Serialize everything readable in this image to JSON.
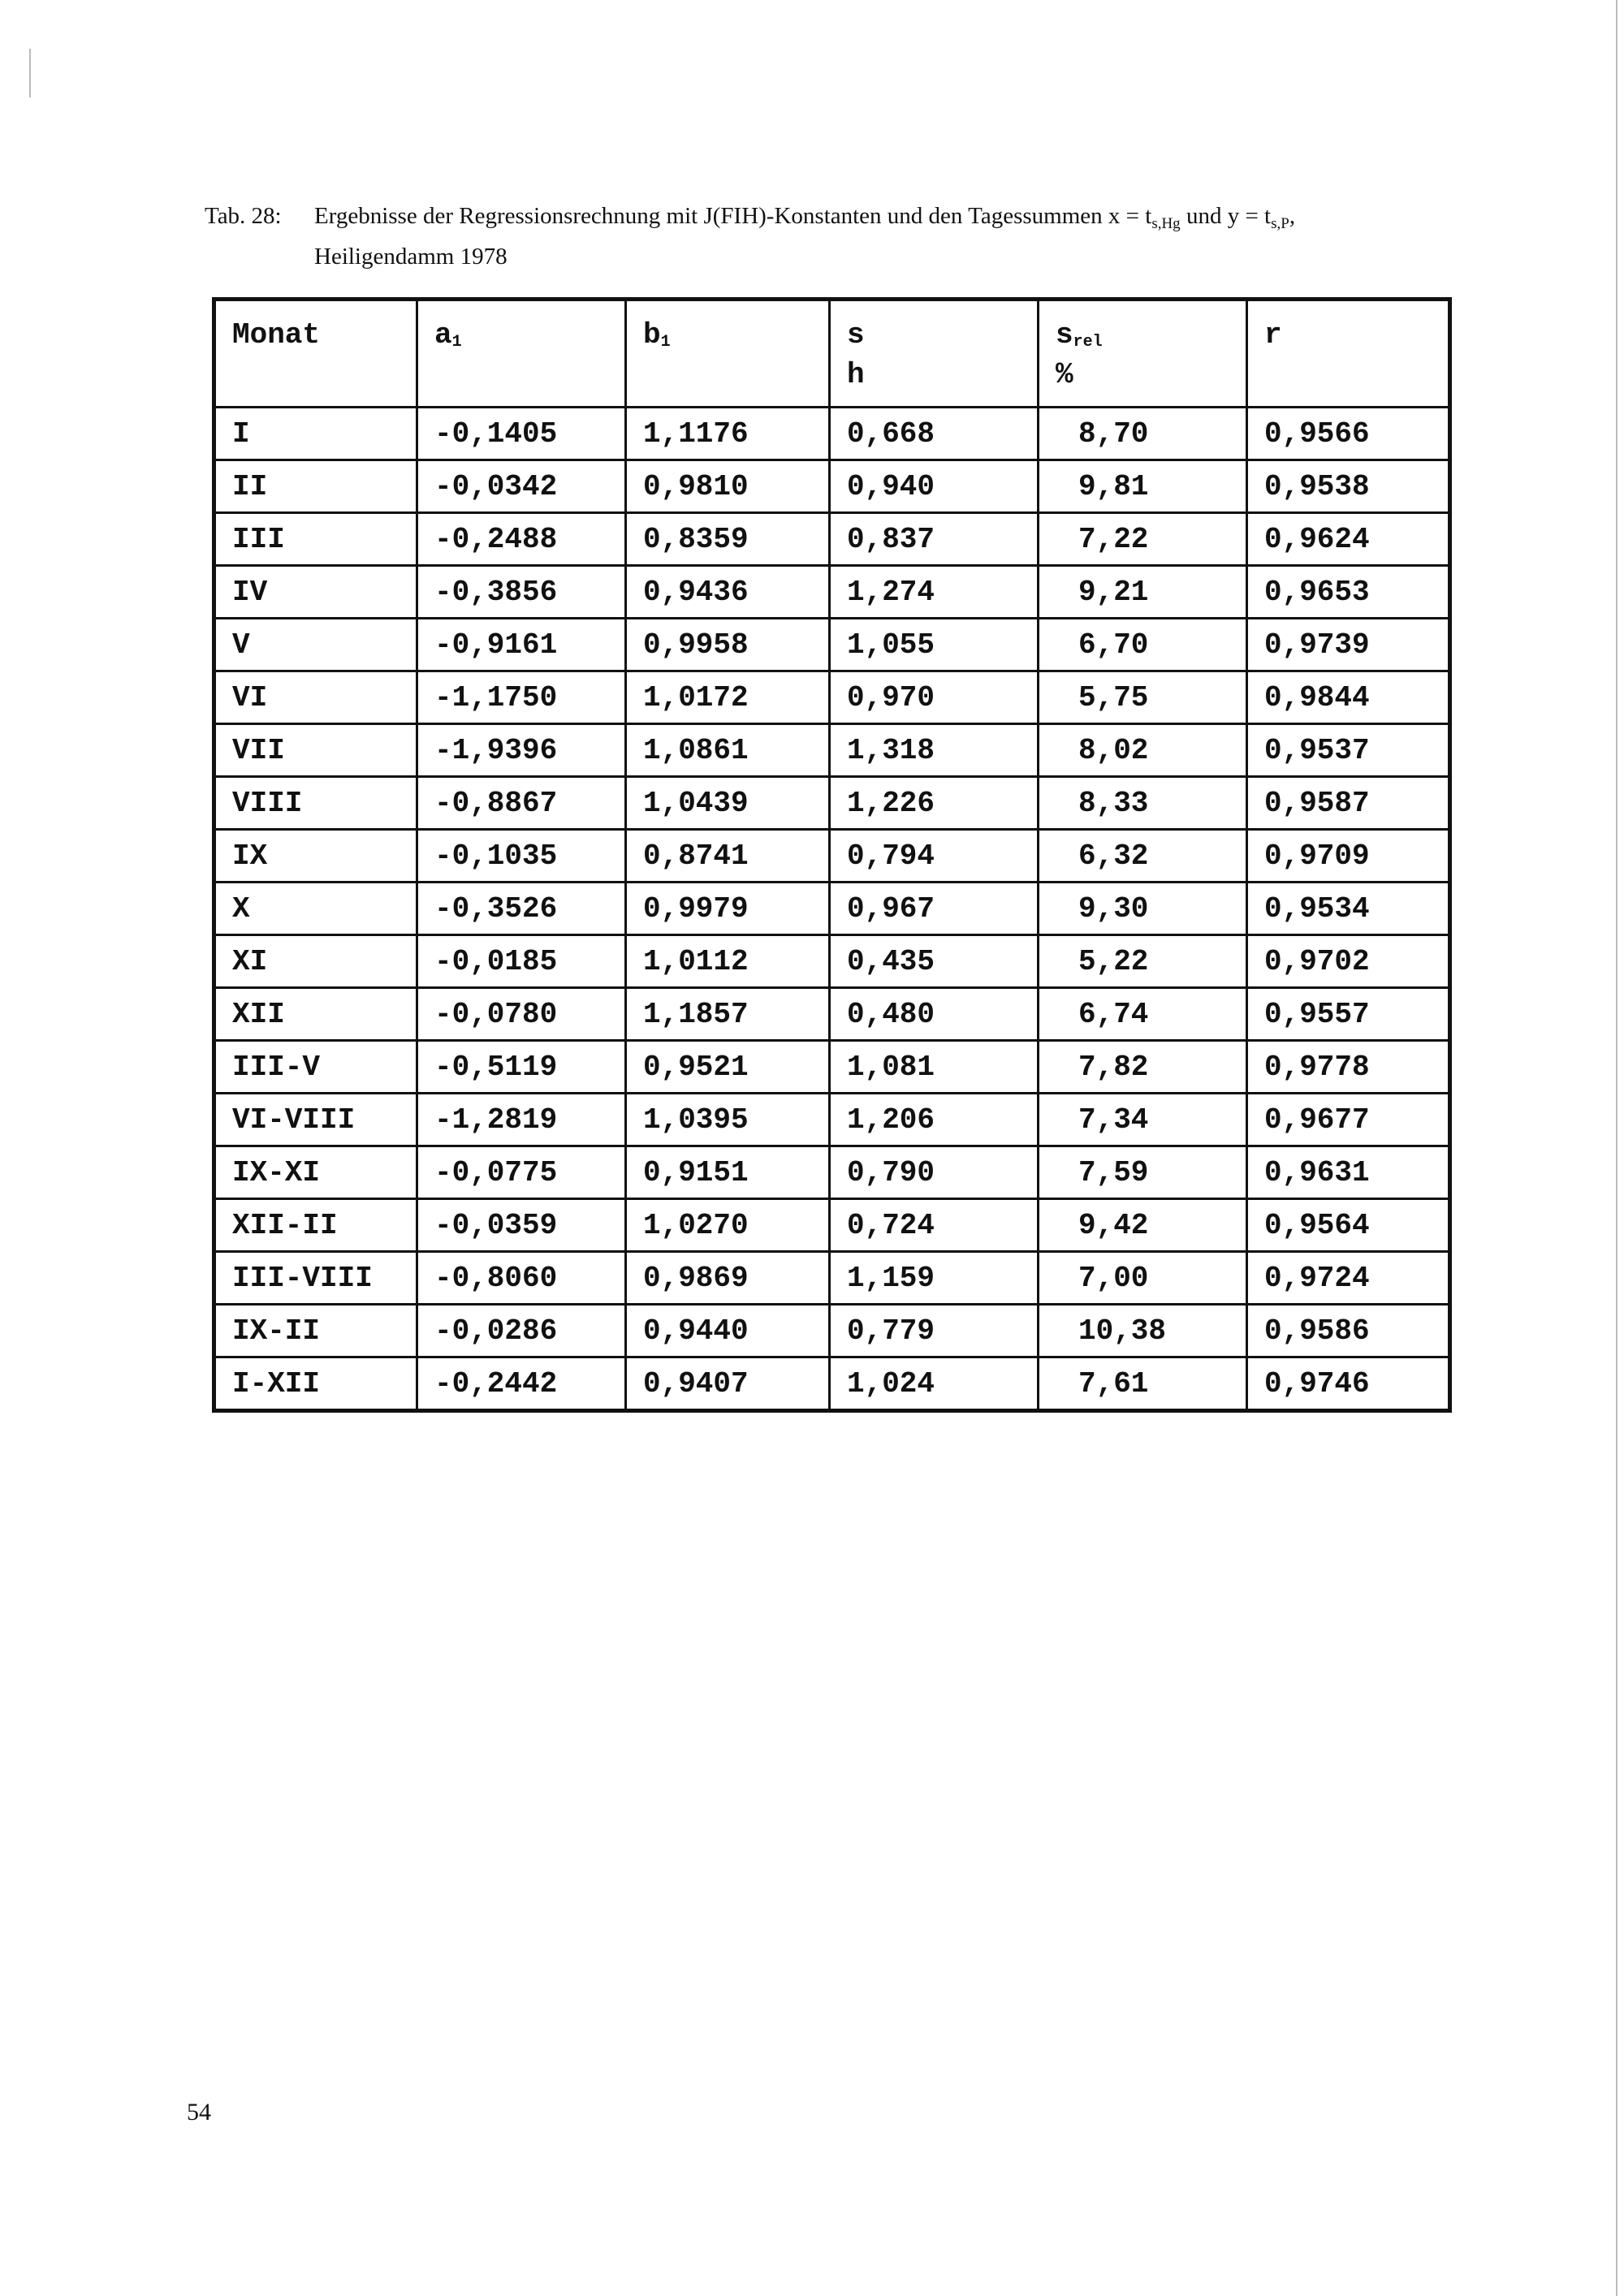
{
  "caption": {
    "label": "Tab. 28:",
    "text_before_x": "Ergebnisse der Regressionsrechnung mit J(FIH)-Konstanten und den Tagessummen x = t",
    "x_sub": "s,Hg",
    "text_between": " und y = t",
    "y_sub": "s,P",
    "text_after": ",",
    "line2": "Heiligendamm 1978"
  },
  "table": {
    "headers": [
      {
        "main": "Monat",
        "sub": "",
        "unit": ""
      },
      {
        "main": "a",
        "sub": "1",
        "unit": ""
      },
      {
        "main": "b",
        "sub": "1",
        "unit": ""
      },
      {
        "main": "s",
        "sub": "",
        "unit": "h"
      },
      {
        "main": "s",
        "sub": "rel",
        "unit": "%"
      },
      {
        "main": "r",
        "sub": "",
        "unit": ""
      }
    ],
    "rows": [
      [
        "I",
        "-0,1405",
        "1,1176",
        "0,668",
        "8,70",
        "0,9566"
      ],
      [
        "II",
        "-0,0342",
        "0,9810",
        "0,940",
        "9,81",
        "0,9538"
      ],
      [
        "III",
        "-0,2488",
        "0,8359",
        "0,837",
        "7,22",
        "0,9624"
      ],
      [
        "IV",
        "-0,3856",
        "0,9436",
        "1,274",
        "9,21",
        "0,9653"
      ],
      [
        "V",
        "-0,9161",
        "0,9958",
        "1,055",
        "6,70",
        "0,9739"
      ],
      [
        "VI",
        "-1,1750",
        "1,0172",
        "0,970",
        "5,75",
        "0,9844"
      ],
      [
        "VII",
        "-1,9396",
        "1,0861",
        "1,318",
        "8,02",
        "0,9537"
      ],
      [
        "VIII",
        "-0,8867",
        "1,0439",
        "1,226",
        "8,33",
        "0,9587"
      ],
      [
        "IX",
        "-0,1035",
        "0,8741",
        "0,794",
        "6,32",
        "0,9709"
      ],
      [
        "X",
        "-0,3526",
        "0,9979",
        "0,967",
        "9,30",
        "0,9534"
      ],
      [
        "XI",
        "-0,0185",
        "1,0112",
        "0,435",
        "5,22",
        "0,9702"
      ],
      [
        "XII",
        "-0,0780",
        "1,1857",
        "0,480",
        "6,74",
        "0,9557"
      ],
      [
        "III-V",
        "-0,5119",
        "0,9521",
        "1,081",
        "7,82",
        "0,9778"
      ],
      [
        "VI-VIII",
        "-1,2819",
        "1,0395",
        "1,206",
        "7,34",
        "0,9677"
      ],
      [
        "IX-XI",
        "-0,0775",
        "0,9151",
        "0,790",
        "7,59",
        "0,9631"
      ],
      [
        "XII-II",
        "-0,0359",
        "1,0270",
        "0,724",
        "9,42",
        "0,9564"
      ],
      [
        "III-VIII",
        "-0,8060",
        "0,9869",
        "1,159",
        "7,00",
        "0,9724"
      ],
      [
        "IX-II",
        "-0,0286",
        "0,9440",
        "0,779",
        "10,38",
        "0,9586"
      ],
      [
        "I-XII",
        "-0,2442",
        "0,9407",
        "1,024",
        "7,61",
        "0,9746"
      ]
    ]
  },
  "page_number": "54"
}
